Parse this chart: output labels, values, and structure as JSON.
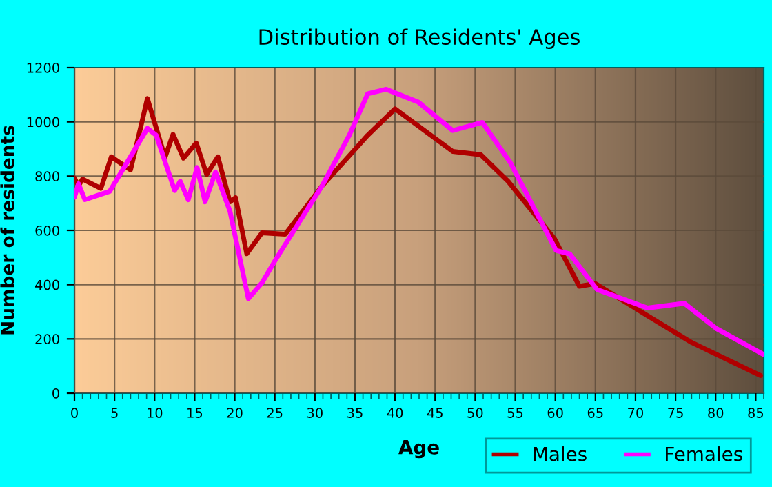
{
  "chart_data": {
    "type": "line",
    "title": "Distribution of Residents' Ages",
    "xlabel": "Age",
    "ylabel": "Number of residents",
    "xlim": [
      0,
      86
    ],
    "xticks": [
      0,
      5,
      10,
      15,
      20,
      25,
      30,
      35,
      40,
      45,
      50,
      55,
      60,
      65,
      70,
      75,
      80,
      85
    ],
    "ylim": [
      0,
      1200
    ],
    "yticks": [
      0,
      200,
      400,
      600,
      800,
      1000,
      1200
    ],
    "grid": true,
    "legend": "bottom right",
    "line_style": "solid",
    "marker": "none",
    "series": [
      {
        "name": "Males",
        "color": "#b00000",
        "x": [
          0,
          0.5,
          1,
          3.3,
          4.6,
          7,
          7.9,
          9.1,
          11.3,
          12.3,
          13.6,
          15.2,
          16.5,
          17.9,
          19.4,
          20.1,
          21.5,
          23.4,
          26.3,
          30.9,
          36.6,
          40,
          47.2,
          50.7,
          54.1,
          59.9,
          63,
          65,
          71.3,
          77,
          85.6
        ],
        "values": [
          793,
          764,
          789,
          755,
          871,
          823,
          934,
          1086,
          869,
          954,
          866,
          922,
          806,
          871,
          705,
          721,
          514,
          591,
          586,
          764,
          951,
          1048,
          891,
          879,
          781,
          569,
          394,
          404,
          289,
          187,
          65
        ]
      },
      {
        "name": "Females",
        "color": "#ff00ff",
        "x": [
          0,
          0.5,
          1.3,
          4.4,
          6.7,
          9.1,
          10.2,
          12.5,
          13.2,
          14.2,
          15.3,
          16.3,
          17.6,
          19.4,
          21.7,
          23.4,
          25.1,
          28,
          30.9,
          34.3,
          36.6,
          38.9,
          42.9,
          47.2,
          50.9,
          54.4,
          60.1,
          61.8,
          65.2,
          71.5,
          76.1,
          80.1,
          85.9
        ],
        "values": [
          722,
          772,
          713,
          744,
          857,
          976,
          951,
          747,
          781,
          713,
          832,
          705,
          815,
          671,
          348,
          407,
          492,
          628,
          764,
          951,
          1104,
          1120,
          1073,
          968,
          998,
          849,
          526,
          513,
          382,
          314,
          331,
          238,
          144
        ]
      }
    ]
  }
}
